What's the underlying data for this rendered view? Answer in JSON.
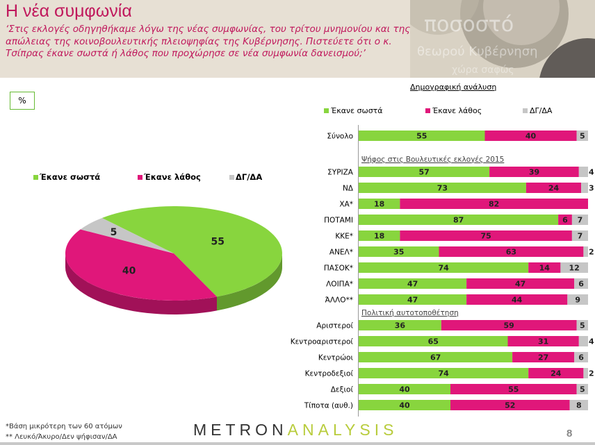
{
  "header": {
    "title": "Η νέα συμφωνία",
    "question": "‘Στις εκλογές οδηγηθήκαμε λόγω της νέας συμφωνίας, του τρίτου μνημονίου και της απώλειας της κοινοβουλευτικής πλειοψηφίας της Κυβέρνησης. Πιστεύετε ότι ο κ. Τσίπρας έκανε σωστά ή λάθος που προχώρησε σε νέα συμφωνία δανεισμού;’"
  },
  "unit_label": "%",
  "demographic_title": "Δημογραφική ανάλυση",
  "colors": {
    "right": "#88d53e",
    "wrong": "#e0177a",
    "dk": "#c6c6c6"
  },
  "chart_data": [
    {
      "type": "pie",
      "title": "",
      "labels": [
        "Έκανε σωστά",
        "Έκανε λάθος",
        "ΔΓ/ΔΑ"
      ],
      "values": [
        55,
        40,
        5
      ],
      "legend": "top"
    },
    {
      "type": "bar",
      "stacked": true,
      "orientation": "horizontal",
      "series_names": [
        "Έκανε σωστά",
        "Έκανε λάθος",
        "ΔΓ/ΔΑ"
      ],
      "legend": "top",
      "groups": [
        {
          "title": "",
          "rows": [
            {
              "label": "Σύνολο",
              "values": [
                55,
                40,
                5
              ]
            }
          ]
        },
        {
          "title": "Ψήφος στις Βουλευτικές εκλογές 2015",
          "rows": [
            {
              "label": "ΣΥΡΙΖΑ",
              "values": [
                57,
                39,
                4
              ]
            },
            {
              "label": "ΝΔ",
              "values": [
                73,
                24,
                3
              ]
            },
            {
              "label": "ΧΑ*",
              "values": [
                18,
                82,
                0
              ]
            },
            {
              "label": "ΠΟΤΑΜΙ",
              "values": [
                87,
                6,
                7
              ]
            },
            {
              "label": "ΚΚΕ*",
              "values": [
                18,
                75,
                7
              ]
            },
            {
              "label": "ΑΝΕΛ*",
              "values": [
                35,
                63,
                2
              ]
            },
            {
              "label": "ΠΑΣΟΚ*",
              "values": [
                74,
                14,
                12
              ]
            },
            {
              "label": "ΛΟΙΠΑ*",
              "values": [
                47,
                47,
                6
              ]
            },
            {
              "label": "ΆΛΛΟ**",
              "values": [
                47,
                44,
                9
              ]
            }
          ]
        },
        {
          "title": "Πολιτική αυτοτοποθέτηση",
          "rows": [
            {
              "label": "Αριστεροί",
              "values": [
                36,
                59,
                5
              ]
            },
            {
              "label": "Κεντροαριστεροί",
              "values": [
                65,
                31,
                4
              ]
            },
            {
              "label": "Κεντρώοι",
              "values": [
                67,
                27,
                6
              ]
            },
            {
              "label": "Κεντροδεξιοί",
              "values": [
                74,
                24,
                2
              ]
            },
            {
              "label": "Δεξιοί",
              "values": [
                40,
                55,
                5
              ]
            },
            {
              "label": "Τίποτα (αυθ.)",
              "values": [
                40,
                52,
                8
              ]
            }
          ]
        }
      ]
    }
  ],
  "footer": {
    "note1": "*Βάση μικρότερη των 60 ατόμων",
    "note2": "** Λευκό/Άκυρο/Δεν ψήφισαν/ΔΑ",
    "logo_part1": "METRON",
    "logo_part2": "ANALYSIS",
    "page_number": "8"
  }
}
